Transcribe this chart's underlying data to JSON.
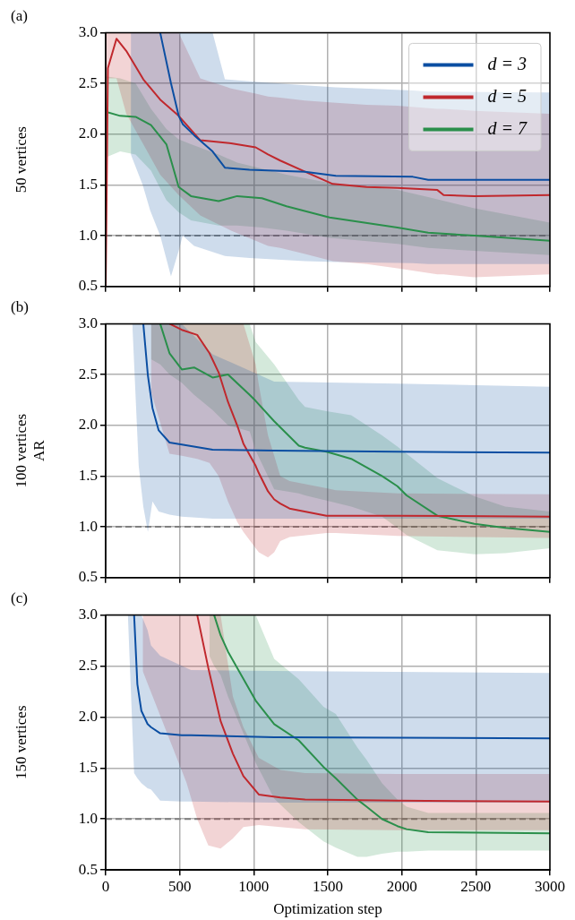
{
  "chart_data": [
    {
      "type": "line",
      "title": "(a)",
      "ylabel": "50 vertices",
      "xlim": [
        0,
        3000
      ],
      "xticks": [
        0,
        500,
        1000,
        1500,
        2000,
        2500,
        3000
      ],
      "ylim": [
        0.5,
        3.0
      ],
      "yticks": [
        0.5,
        {
          "value": 1,
          "label": "1.0"
        },
        1.5,
        {
          "value": 2,
          "label": "2.0"
        },
        2.5,
        {
          "value": 3,
          "label": "3.0"
        }
      ],
      "grid": true,
      "legend": "top right",
      "tick_labels": "y",
      "line_style": "solid",
      "marker": "none",
      "ref_lines": [
        {
          "axis": "y",
          "value": 1.0,
          "label": null,
          "color": "#808080",
          "line_style": "dashed"
        }
      ],
      "series": [
        {
          "name": "d = 3",
          "color": "#0b4ea2",
          "x": [
            170,
            250,
            300,
            368,
            441,
            493,
            520,
            597,
            722,
            805,
            971,
            1346,
            1554,
            2074,
            2178,
            3000
          ],
          "values": [
            null,
            null,
            null,
            3.0,
            2.5,
            2.18,
            2.1,
            1.99,
            1.83,
            1.67,
            1.65,
            1.63,
            1.59,
            1.58,
            1.55,
            1.55
          ],
          "upper": [
            3.0,
            3.0,
            3.0,
            3.0,
            3.0,
            3.0,
            3.0,
            3.0,
            3.0,
            2.54,
            2.52,
            2.48,
            2.46,
            2.43,
            2.42,
            2.41
          ],
          "lower": [
            1.8,
            1.5,
            1.25,
            1.0,
            0.6,
            0.85,
            1.0,
            0.9,
            0.84,
            0.8,
            0.78,
            0.75,
            0.74,
            0.73,
            0.72,
            0.72
          ]
        },
        {
          "name": "d = 5",
          "color": "#c0282d",
          "x": [
            0,
            15,
            73,
            139,
            254,
            368,
            493,
            639,
            847,
            1013,
            1096,
            1179,
            1346,
            1533,
            1762,
            1970,
            2240,
            2282,
            2490,
            3000
          ],
          "values": [
            0.5,
            2.65,
            2.94,
            2.82,
            2.54,
            2.34,
            2.18,
            1.94,
            1.91,
            1.87,
            1.8,
            1.74,
            1.63,
            1.51,
            1.48,
            1.47,
            1.45,
            1.4,
            1.39,
            1.4
          ],
          "upper": [
            3.0,
            3.0,
            3.0,
            3.0,
            3.0,
            3.0,
            3.0,
            2.55,
            2.45,
            2.4,
            2.37,
            2.36,
            2.33,
            2.31,
            2.29,
            2.28,
            2.25,
            2.25,
            2.23,
            2.2
          ],
          "lower": [
            2.55,
            2.55,
            2.55,
            2.2,
            1.9,
            1.6,
            1.4,
            1.2,
            1.05,
            0.95,
            0.9,
            0.88,
            0.82,
            0.75,
            0.72,
            0.68,
            0.62,
            0.62,
            0.59,
            0.62
          ]
        },
        {
          "name": "d = 7",
          "color": "#2a8f4b",
          "x": [
            0,
            98,
            202,
            306,
            410,
            493,
            576,
            763,
            888,
            1055,
            1221,
            1512,
            1970,
            2178,
            2490,
            3000
          ],
          "values": [
            2.22,
            2.18,
            2.17,
            2.09,
            1.9,
            1.48,
            1.39,
            1.34,
            1.39,
            1.37,
            1.29,
            1.18,
            1.08,
            1.03,
            1.0,
            0.95
          ],
          "upper": [
            2.57,
            2.55,
            2.5,
            2.25,
            2.05,
            1.95,
            1.9,
            1.8,
            1.72,
            1.66,
            1.6,
            1.52,
            1.45,
            1.38,
            1.27,
            1.13
          ],
          "lower": [
            1.77,
            1.83,
            1.8,
            1.64,
            1.35,
            1.23,
            1.15,
            1.1,
            1.1,
            1.08,
            1.05,
            0.98,
            0.92,
            0.88,
            0.85,
            0.81
          ]
        }
      ]
    },
    {
      "type": "line",
      "title": "(b)",
      "ylabel": "100 vertices\nAR",
      "xlim": [
        0,
        3000
      ],
      "xticks": [
        0,
        500,
        1000,
        1500,
        2000,
        2500,
        3000
      ],
      "ylim": [
        0.5,
        3.0
      ],
      "yticks": [
        0.5,
        {
          "value": 1,
          "label": "1.0"
        },
        1.5,
        {
          "value": 2,
          "label": "2.0"
        },
        2.5,
        {
          "value": 3,
          "label": "3.0"
        }
      ],
      "grid": true,
      "tick_labels": "y",
      "line_style": "solid",
      "marker": "none",
      "ref_lines": [
        {
          "axis": "y",
          "value": 1.0,
          "label": null,
          "color": "#808080",
          "line_style": "dashed"
        }
      ],
      "series": [
        {
          "color": "#0b4ea2",
          "x": [
            180,
            223,
            254,
            285,
            316,
            358,
            431,
            514,
            722,
            1138,
            1970,
            3000
          ],
          "values": [
            null,
            null,
            3.0,
            2.49,
            2.17,
            1.95,
            1.83,
            1.81,
            1.76,
            1.75,
            1.74,
            1.73
          ],
          "upper": [
            3.0,
            3.0,
            3.0,
            3.0,
            3.0,
            3.0,
            3.0,
            3.0,
            2.7,
            2.43,
            2.41,
            2.38
          ],
          "lower": [
            3.0,
            1.6,
            1.2,
            0.95,
            1.25,
            1.15,
            1.12,
            1.1,
            1.08,
            1.08,
            1.08,
            1.08
          ]
        },
        {
          "color": "#c0282d",
          "x": [
            306,
            431,
            514,
            618,
            701,
            763,
            826,
            888,
            930,
            1013,
            1034,
            1096,
            1138,
            1179,
            1242,
            1491,
            1554,
            1970,
            3000
          ],
          "values": [
            null,
            3.0,
            2.94,
            2.89,
            2.71,
            2.52,
            2.23,
            2.0,
            1.82,
            1.6,
            1.53,
            1.35,
            1.27,
            1.23,
            1.18,
            1.11,
            1.11,
            1.11,
            1.1
          ],
          "upper": [
            3.0,
            3.0,
            3.0,
            3.0,
            3.0,
            3.0,
            3.0,
            3.0,
            3.0,
            2.6,
            2.4,
            1.9,
            1.7,
            1.5,
            1.45,
            1.38,
            1.36,
            1.33,
            1.32
          ],
          "lower": [
            2.33,
            1.72,
            1.7,
            1.67,
            1.63,
            1.5,
            1.25,
            1.05,
            0.95,
            0.79,
            0.75,
            0.7,
            0.75,
            0.86,
            0.9,
            0.94,
            0.94,
            0.91,
            0.89
          ]
        },
        {
          "color": "#2a8f4b",
          "x": [
            306,
            368,
            431,
            514,
            597,
            722,
            826,
            972,
            1013,
            1138,
            1304,
            1346,
            1491,
            1658,
            1866,
            1970,
            2032,
            2240,
            2490,
            2698,
            3000
          ],
          "values": [
            null,
            3.0,
            2.71,
            2.55,
            2.57,
            2.47,
            2.5,
            2.3,
            2.24,
            2.04,
            1.8,
            1.78,
            1.74,
            1.67,
            1.5,
            1.4,
            1.31,
            1.11,
            1.03,
            0.99,
            0.95
          ],
          "upper": [
            3.0,
            3.0,
            3.0,
            3.0,
            3.0,
            3.0,
            3.0,
            3.0,
            2.82,
            2.6,
            2.25,
            2.18,
            2.14,
            2.1,
            1.9,
            1.79,
            1.72,
            1.48,
            1.3,
            1.2,
            1.15
          ],
          "lower": [
            2.65,
            2.6,
            2.5,
            2.42,
            2.3,
            2.15,
            2.0,
            1.94,
            1.75,
            1.37,
            1.33,
            1.31,
            1.26,
            1.2,
            1.1,
            0.99,
            0.92,
            0.77,
            0.73,
            0.74,
            0.79
          ]
        }
      ]
    },
    {
      "type": "line",
      "title": "(c)",
      "ylabel": "150 vertices",
      "xlabel": "Optimization step",
      "xlim": [
        0,
        3000
      ],
      "xticks": [
        0,
        500,
        1000,
        1500,
        2000,
        2500,
        3000
      ],
      "ylim": [
        0.5,
        3.0
      ],
      "yticks": [
        0.5,
        {
          "value": 1,
          "label": "1.0"
        },
        1.5,
        {
          "value": 2,
          "label": "2.0"
        },
        2.5,
        {
          "value": 3,
          "label": "3.0"
        }
      ],
      "grid": true,
      "line_style": "solid",
      "marker": "none",
      "ref_lines": [
        {
          "axis": "y",
          "value": 1.0,
          "label": null,
          "color": "#808080",
          "line_style": "dashed"
        }
      ],
      "series": [
        {
          "color": "#0b4ea2",
          "x": [
            150,
            192,
            214,
            241,
            283,
            306,
            368,
            514,
            576,
            1138,
            3000
          ],
          "values": [
            null,
            3.0,
            2.32,
            2.06,
            1.93,
            1.9,
            1.84,
            1.82,
            1.82,
            1.8,
            1.79
          ],
          "upper": [
            3.0,
            3.0,
            3.0,
            3.0,
            2.85,
            2.7,
            2.6,
            2.5,
            2.46,
            2.45,
            2.43
          ],
          "lower": [
            3.0,
            1.45,
            1.4,
            1.35,
            1.3,
            1.29,
            1.18,
            1.17,
            1.17,
            1.16,
            1.16
          ]
        },
        {
          "color": "#c0282d",
          "x": [
            250,
            547,
            618,
            693,
            776,
            859,
            930,
            1034,
            1179,
            1346,
            1970,
            3000
          ],
          "values": [
            null,
            null,
            3.0,
            2.48,
            1.96,
            1.64,
            1.42,
            1.24,
            1.21,
            1.19,
            1.18,
            1.17
          ],
          "upper": [
            3.0,
            3.0,
            3.0,
            3.0,
            3.0,
            2.2,
            1.9,
            1.6,
            1.48,
            1.45,
            1.44,
            1.44
          ],
          "lower": [
            2.45,
            1.35,
            1.0,
            0.74,
            0.71,
            0.81,
            0.92,
            0.94,
            0.92,
            0.9,
            0.89,
            0.89
          ]
        },
        {
          "color": "#2a8f4b",
          "x": [
            700,
            732,
            776,
            826,
            1013,
            1138,
            1304,
            1471,
            1554,
            1700,
            1762,
            1866,
            1970,
            2032,
            2178,
            3000
          ],
          "values": [
            null,
            3.0,
            2.8,
            2.64,
            2.16,
            1.93,
            1.77,
            1.51,
            1.4,
            1.19,
            1.12,
            1.0,
            0.93,
            0.9,
            0.87,
            0.86
          ],
          "upper": [
            3.0,
            3.0,
            3.0,
            3.0,
            3.0,
            2.57,
            2.37,
            2.1,
            2.03,
            1.7,
            1.58,
            1.35,
            1.19,
            1.12,
            1.06,
            1.06
          ],
          "lower": [
            2.6,
            2.5,
            2.41,
            2.2,
            1.55,
            1.2,
            0.97,
            0.78,
            0.72,
            0.63,
            0.63,
            0.66,
            0.68,
            0.68,
            0.69,
            0.69
          ]
        }
      ]
    }
  ]
}
